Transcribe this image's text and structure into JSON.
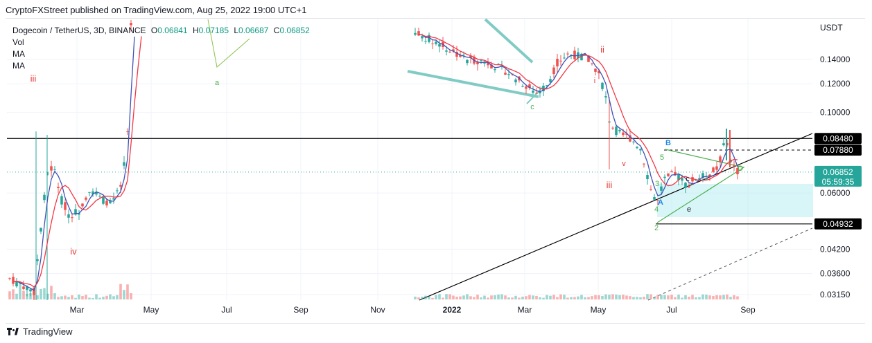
{
  "header": {
    "publish_line": "CryptoFXStreet published on TradingView.com, Aug 25, 2022 19:00 UTC+1"
  },
  "legend": {
    "symbol": "Dogecoin / TetherUS, 3D, BINANCE",
    "o_label": "O",
    "o_value": "0.06841",
    "h_label": "H",
    "h_value": "0.07185",
    "l_label": "L",
    "l_value": "0.06687",
    "c_label": "C",
    "c_value": "0.06852",
    "indicators": [
      "Vol",
      "MA",
      "MA"
    ]
  },
  "branding": {
    "name": "TradingView"
  },
  "colors": {
    "up": "#26a69a",
    "down": "#ef5350",
    "ma_fast": "#3f51b5",
    "ma_slow": "#f23645",
    "wave_green": "#4caf50",
    "wave_red": "#e53935",
    "channel": "#80cbc4",
    "box": "#b2ebf2",
    "price_tag": "#26a69a",
    "grid": "#f0f3fa"
  },
  "chart_data": {
    "type": "candlestick",
    "currency_label": "USDT",
    "y_ticks": [
      "0.14000",
      "0.12000",
      "0.10000",
      "0.06000",
      "0.04200",
      "0.03600",
      "0.03150"
    ],
    "y_tick_values": [
      0.14,
      0.12,
      0.1,
      0.06,
      0.042,
      0.036,
      0.0315
    ],
    "x_ticks": [
      "Mar",
      "May",
      "Jul",
      "Sep",
      "Nov",
      "2022",
      "Mar",
      "May",
      "Jul",
      "Sep"
    ],
    "last_price": "0.06852",
    "countdown": "05:59:35",
    "price_levels": [
      {
        "label": "0.08480",
        "value": 0.0848,
        "style": "solid"
      },
      {
        "label": "0.07880",
        "value": 0.0788,
        "style": "dashed"
      },
      {
        "label": "0.04932",
        "value": 0.04932,
        "style": "solid"
      }
    ],
    "wave_labels": [
      {
        "text": "iii",
        "color": "red"
      },
      {
        "text": "iv",
        "color": "red"
      },
      {
        "text": "a",
        "color": "green"
      },
      {
        "text": "c",
        "color": "green"
      },
      {
        "text": "ii",
        "color": "red"
      },
      {
        "text": "i",
        "color": "red"
      },
      {
        "text": "v",
        "color": "red"
      },
      {
        "text": "iii",
        "color": "red"
      },
      {
        "text": "B",
        "color": "blue"
      },
      {
        "text": "5",
        "color": "green"
      },
      {
        "text": "3",
        "color": "green"
      },
      {
        "text": "A",
        "color": "blue"
      },
      {
        "text": "4",
        "color": "green"
      },
      {
        "text": "2",
        "color": "green"
      },
      {
        "text": "c",
        "color": "black"
      },
      {
        "text": "e",
        "color": "black"
      },
      {
        "text": "D",
        "color": "green"
      }
    ],
    "scale": "log",
    "grid": true
  }
}
